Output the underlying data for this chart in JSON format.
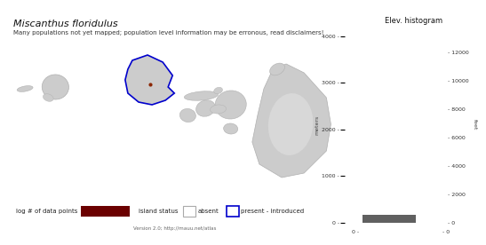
{
  "title": "Miscanthus floridulus",
  "subtitle": "Many populations not yet mapped; population level information may be erronous, read disclaimers!",
  "histogram_title": "Elev. histogram",
  "legend_text1": "log # of data points",
  "legend_text2": "island status",
  "legend_absent": "absent",
  "legend_present": "present - introduced",
  "version_text": "Version 2.0; http://mauu.net/atlas",
  "bg_color": "#ffffff",
  "island_color": "#cccccc",
  "island_outline": "#b0b0b0",
  "oahu_outline": "#0000cc",
  "bar_color": "#606060",
  "legend_dark_red": "#6b0000",
  "meters_ticks": [
    0,
    1000,
    2000,
    3000,
    4000
  ],
  "feet_ticks": [
    0,
    2000,
    4000,
    6000,
    8000,
    10000,
    12000
  ],
  "title_fontsize": 8,
  "subtitle_fontsize": 5,
  "legend_fontsize": 5,
  "hist_title_fontsize": 6,
  "hist_tick_fontsize": 4.5,
  "version_fontsize": 4
}
